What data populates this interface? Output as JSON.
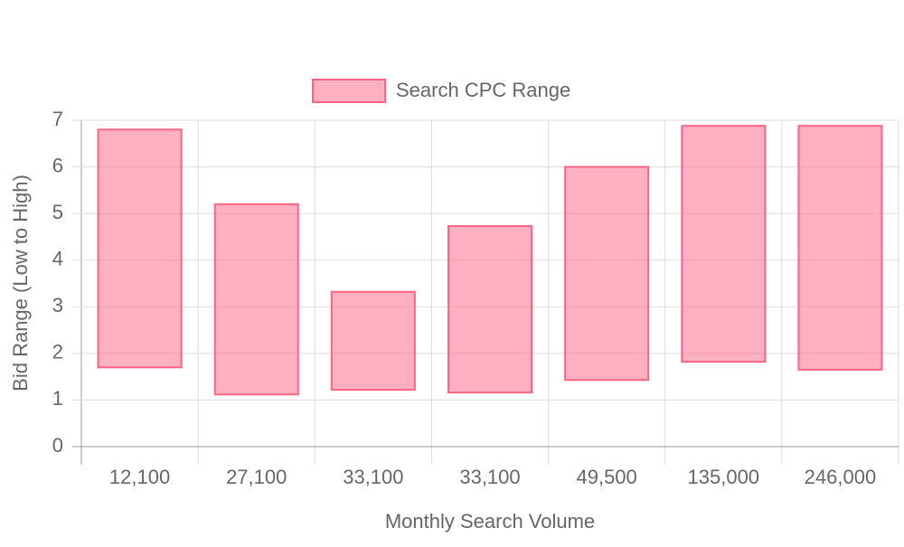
{
  "chart_data": {
    "type": "floating-bar",
    "x_label": "Monthly Search Volume",
    "y_label": "Bid Range (Low to High)",
    "categories": [
      "12,100",
      "27,100",
      "33,100",
      "33,100",
      "49,500",
      "135,000",
      "246,000"
    ],
    "series": [
      {
        "name": "Search CPC Range",
        "color": "#ff6384",
        "fill": "rgba(255,99,132,0.5)",
        "values": [
          [
            1.7,
            6.8
          ],
          [
            1.12,
            5.2
          ],
          [
            1.22,
            3.32
          ],
          [
            1.16,
            4.73
          ],
          [
            1.43,
            6.0
          ],
          [
            1.82,
            6.88
          ],
          [
            1.65,
            6.88
          ]
        ]
      }
    ],
    "ylim": [
      0,
      7
    ],
    "yticks": [
      0,
      1,
      2,
      3,
      4,
      5,
      6,
      7
    ],
    "grid": true,
    "legend": "top"
  }
}
